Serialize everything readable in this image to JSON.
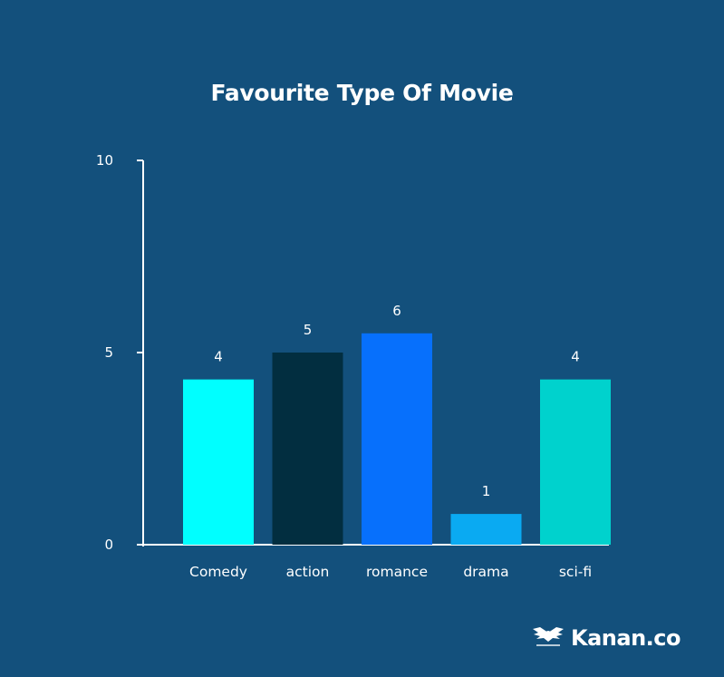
{
  "chart_data": {
    "type": "bar",
    "title": "Favourite Type Of Movie",
    "categories": [
      "Comedy",
      "action",
      "romance",
      "drama",
      "sci-fi"
    ],
    "values": [
      4.3,
      5,
      5.5,
      0.8,
      4.3
    ],
    "data_labels": [
      "4",
      "5",
      "6",
      "1",
      "4"
    ],
    "bar_colors": [
      "#00ffff",
      "#022e40",
      "#0770fc",
      "#0aaaf2",
      "#00d2cd"
    ],
    "yticks": [
      "0",
      "5",
      "10"
    ],
    "ylim": [
      0,
      10
    ],
    "xlabel": "",
    "ylabel": "",
    "grid": false
  },
  "brand": {
    "name": "Kanan.co",
    "logo_icon": "wings-logo-icon"
  },
  "colors": {
    "background": "#13507c",
    "axis": "#ffffff",
    "text": "#ffffff"
  }
}
